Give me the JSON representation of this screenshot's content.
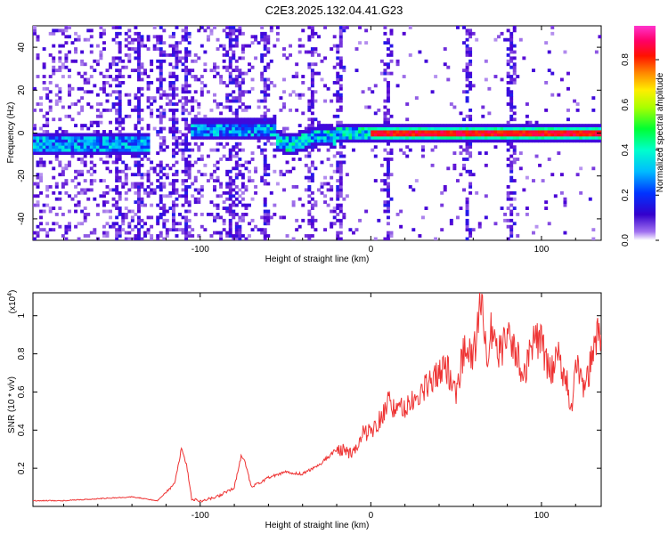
{
  "title": "C2E3.2025.132.04.41.G23",
  "colors": {
    "snr_line": "#ee3333",
    "spectrum_band": "#5522dd",
    "background": "#ffffff"
  },
  "chart_data": [
    {
      "type": "heatmap",
      "xlabel": "Height of straight line (km)",
      "ylabel": "Frequency (Hz)",
      "xlim": [
        -198,
        135
      ],
      "ylim": [
        -50,
        50
      ],
      "xticks": [
        -100,
        0,
        100
      ],
      "yticks": [
        -40,
        -20,
        0,
        20,
        40
      ],
      "colorbar": {
        "label": "Normalized spectral amplitude",
        "range": [
          0.0,
          0.95
        ],
        "ticks": [
          0.0,
          0.2,
          0.4,
          0.6,
          0.8
        ],
        "colormap": "rainbow (purple → blue → cyan → green → yellow → red → magenta)"
      },
      "features": {
        "dominant_frequency_hz": 0,
        "band_halfwidth_hz": 3,
        "strongest_segment_km": [
          0,
          135
        ],
        "broadband_vertical_streaks_km": [
          -148,
          -136,
          -123,
          -115,
          -108,
          -82,
          -78,
          -62,
          -35,
          -18,
          10,
          57,
          82
        ]
      }
    },
    {
      "type": "line",
      "xlabel": "Height of straight line (km)",
      "ylabel": "SNR (10 * v/v)",
      "scale_label": "(x10",
      "scale_exponent": "4",
      "xlim": [
        -198,
        135
      ],
      "ylim": [
        0,
        1.12
      ],
      "xticks": [
        -100,
        0,
        100
      ],
      "yticks": [
        0.2,
        0.4,
        0.6,
        0.8,
        1.0
      ],
      "series": [
        {
          "x": [
            -198,
            -180,
            -160,
            -140,
            -125,
            -115,
            -111,
            -108,
            -105,
            -100,
            -90,
            -80,
            -76,
            -74,
            -70,
            -60,
            -50,
            -40,
            -30,
            -20,
            -10,
            -5,
            0,
            5,
            10,
            15,
            20,
            25,
            30,
            35,
            40,
            45,
            50,
            55,
            60,
            63,
            65,
            68,
            70,
            75,
            80,
            85,
            90,
            95,
            100,
            105,
            110,
            115,
            118,
            120,
            125,
            128,
            130,
            135
          ],
          "y": [
            0.03,
            0.03,
            0.04,
            0.05,
            0.03,
            0.12,
            0.3,
            0.22,
            0.04,
            0.03,
            0.05,
            0.1,
            0.26,
            0.24,
            0.1,
            0.15,
            0.18,
            0.17,
            0.22,
            0.3,
            0.28,
            0.38,
            0.4,
            0.45,
            0.55,
            0.5,
            0.52,
            0.55,
            0.6,
            0.65,
            0.7,
            0.72,
            0.6,
            0.85,
            0.75,
            1.0,
            1.12,
            0.8,
            0.92,
            0.8,
            0.88,
            0.8,
            0.7,
            0.88,
            0.85,
            0.7,
            0.78,
            0.65,
            0.5,
            0.75,
            0.6,
            0.7,
            0.86,
            0.9
          ]
        }
      ]
    }
  ]
}
